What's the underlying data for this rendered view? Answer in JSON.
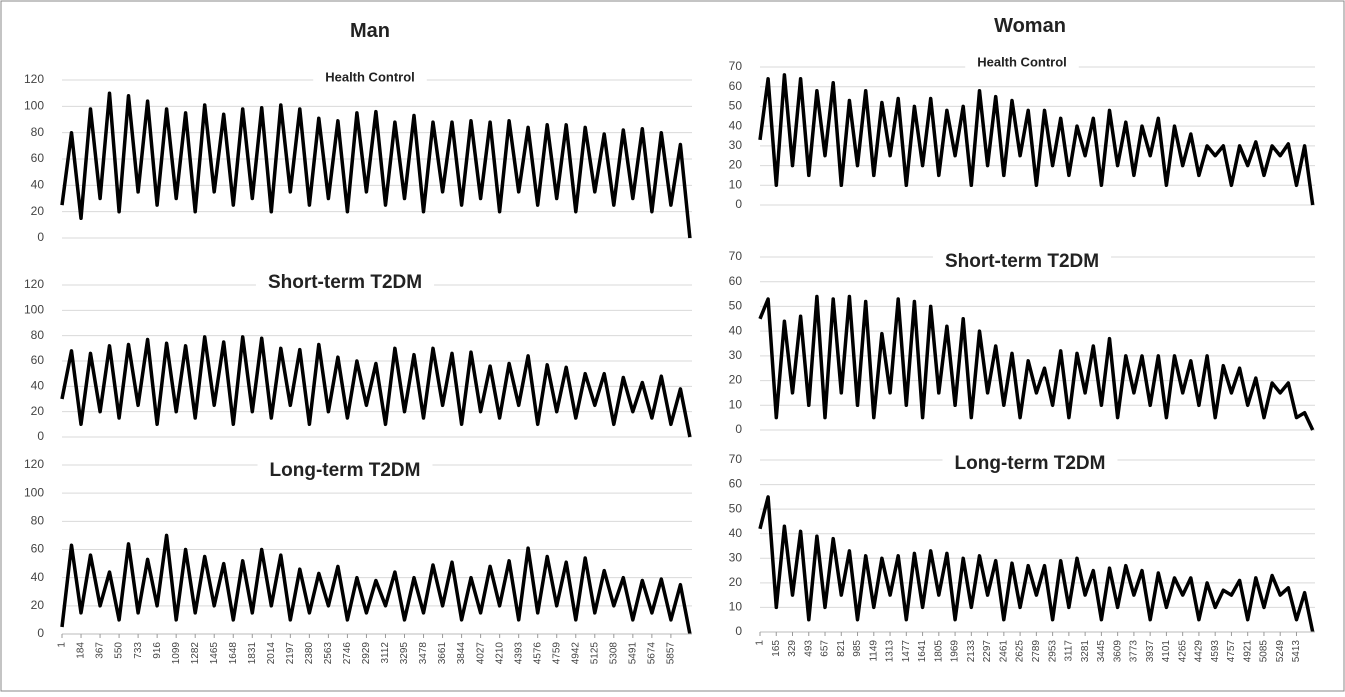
{
  "chart_data": [
    {
      "type": "line",
      "title": "Man",
      "color": "#000000",
      "grid": true,
      "x": [
        1,
        92,
        184,
        275,
        367,
        458,
        550,
        641,
        733,
        824,
        916,
        1007,
        1099,
        1190,
        1282,
        1373,
        1465,
        1556,
        1648,
        1739,
        1831,
        1922,
        2014,
        2105,
        2197,
        2288,
        2380,
        2471,
        2563,
        2654,
        2746,
        2837,
        2929,
        3020,
        3112,
        3203,
        3295,
        3386,
        3478,
        3569,
        3661,
        3752,
        3844,
        3935,
        4027,
        4118,
        4210,
        4301,
        4393,
        4484,
        4576,
        4667,
        4759,
        4850,
        4942,
        5033,
        5125,
        5216,
        5308,
        5399,
        5491,
        5582,
        5674,
        5765,
        5857,
        5948,
        6040
      ],
      "xlim": [
        1,
        6060
      ],
      "xticks": [
        1,
        184,
        367,
        550,
        733,
        916,
        1099,
        1282,
        1465,
        1648,
        1831,
        2014,
        2197,
        2380,
        2563,
        2746,
        2929,
        3112,
        3295,
        3478,
        3661,
        3844,
        4027,
        4210,
        4393,
        4576,
        4759,
        4942,
        5125,
        5308,
        5491,
        5674,
        5857
      ],
      "ylim": [
        0,
        120
      ],
      "yticks": [
        0,
        20,
        40,
        60,
        80,
        100,
        120
      ],
      "series": [
        {
          "name": "Health Control",
          "values": [
            25,
            80,
            15,
            98,
            30,
            110,
            20,
            108,
            35,
            104,
            25,
            98,
            30,
            95,
            20,
            101,
            35,
            94,
            25,
            98,
            30,
            99,
            20,
            101,
            35,
            98,
            25,
            91,
            30,
            89,
            20,
            95,
            35,
            96,
            25,
            88,
            30,
            93,
            20,
            88,
            35,
            88,
            25,
            89,
            30,
            88,
            20,
            89,
            35,
            84,
            25,
            86,
            30,
            86,
            20,
            84,
            35,
            79,
            25,
            82,
            30,
            83,
            20,
            80,
            25,
            71,
            0
          ]
        },
        {
          "name": "Short-term T2DM",
          "values": [
            30,
            68,
            10,
            66,
            20,
            72,
            15,
            73,
            25,
            77,
            10,
            74,
            20,
            72,
            15,
            79,
            25,
            75,
            10,
            79,
            20,
            78,
            15,
            70,
            25,
            69,
            10,
            73,
            20,
            63,
            15,
            60,
            25,
            58,
            10,
            70,
            20,
            65,
            15,
            70,
            25,
            66,
            10,
            67,
            20,
            56,
            15,
            58,
            25,
            64,
            10,
            57,
            20,
            55,
            15,
            50,
            25,
            50,
            10,
            47,
            20,
            43,
            15,
            48,
            10,
            38,
            0
          ]
        },
        {
          "name": "Long-term T2DM",
          "values": [
            5,
            63,
            15,
            56,
            20,
            44,
            10,
            64,
            15,
            53,
            20,
            70,
            10,
            60,
            15,
            55,
            20,
            50,
            10,
            52,
            15,
            60,
            20,
            56,
            10,
            46,
            15,
            43,
            20,
            48,
            10,
            40,
            15,
            38,
            20,
            44,
            10,
            40,
            15,
            49,
            20,
            51,
            10,
            40,
            15,
            48,
            20,
            52,
            10,
            61,
            15,
            55,
            20,
            51,
            10,
            54,
            15,
            45,
            20,
            40,
            10,
            38,
            15,
            39,
            10,
            35,
            0
          ]
        }
      ]
    },
    {
      "type": "line",
      "title": "Woman",
      "color": "#000000",
      "grid": true,
      "x": [
        1,
        83,
        165,
        247,
        329,
        411,
        493,
        575,
        657,
        739,
        821,
        903,
        985,
        1067,
        1149,
        1231,
        1313,
        1395,
        1477,
        1559,
        1641,
        1723,
        1805,
        1887,
        1969,
        2051,
        2133,
        2215,
        2297,
        2379,
        2461,
        2543,
        2625,
        2707,
        2789,
        2871,
        2953,
        3035,
        3117,
        3199,
        3281,
        3363,
        3445,
        3527,
        3609,
        3691,
        3773,
        3855,
        3937,
        4019,
        4101,
        4183,
        4265,
        4347,
        4429,
        4511,
        4593,
        4675,
        4757,
        4839,
        4921,
        5003,
        5085,
        5167,
        5249,
        5331,
        5413,
        5495,
        5577
      ],
      "xlim": [
        1,
        5600
      ],
      "xticks": [
        1,
        165,
        329,
        493,
        657,
        821,
        985,
        1149,
        1313,
        1477,
        1641,
        1805,
        1969,
        2133,
        2297,
        2461,
        2625,
        2789,
        2953,
        3117,
        3281,
        3445,
        3609,
        3773,
        3937,
        4101,
        4265,
        4429,
        4593,
        4757,
        4921,
        5085,
        5249,
        5413
      ],
      "ylim": [
        0,
        70
      ],
      "yticks": [
        0,
        10,
        20,
        30,
        40,
        50,
        60,
        70
      ],
      "series": [
        {
          "name": "Health Control",
          "values": [
            33,
            64,
            10,
            66,
            20,
            64,
            15,
            58,
            25,
            62,
            10,
            53,
            20,
            58,
            15,
            52,
            25,
            54,
            10,
            50,
            20,
            54,
            15,
            48,
            25,
            50,
            10,
            58,
            20,
            55,
            15,
            53,
            25,
            48,
            10,
            48,
            20,
            44,
            15,
            40,
            25,
            44,
            10,
            48,
            20,
            42,
            15,
            40,
            25,
            44,
            10,
            40,
            20,
            36,
            15,
            30,
            25,
            30,
            10,
            30,
            20,
            32,
            15,
            30,
            25,
            31,
            10,
            30,
            0
          ]
        },
        {
          "name": "Short-term T2DM",
          "values": [
            45,
            53,
            5,
            44,
            15,
            46,
            10,
            54,
            5,
            53,
            15,
            54,
            10,
            52,
            5,
            39,
            15,
            53,
            10,
            52,
            5,
            50,
            15,
            42,
            10,
            45,
            5,
            40,
            15,
            34,
            10,
            31,
            5,
            28,
            15,
            25,
            10,
            32,
            5,
            31,
            15,
            34,
            10,
            37,
            5,
            30,
            15,
            30,
            10,
            30,
            5,
            30,
            15,
            28,
            10,
            30,
            5,
            26,
            15,
            25,
            10,
            21,
            5,
            19,
            15,
            19,
            5,
            7,
            0
          ]
        },
        {
          "name": "Long-term T2DM",
          "values": [
            42,
            55,
            10,
            43,
            15,
            41,
            5,
            39,
            10,
            38,
            15,
            33,
            5,
            31,
            10,
            30,
            15,
            31,
            5,
            32,
            10,
            33,
            15,
            32,
            5,
            30,
            10,
            31,
            15,
            29,
            5,
            28,
            10,
            27,
            15,
            27,
            5,
            29,
            10,
            30,
            15,
            25,
            5,
            26,
            10,
            27,
            15,
            25,
            5,
            24,
            10,
            22,
            15,
            22,
            5,
            20,
            10,
            17,
            15,
            21,
            5,
            22,
            10,
            23,
            15,
            18,
            5,
            16,
            0
          ]
        }
      ]
    }
  ]
}
